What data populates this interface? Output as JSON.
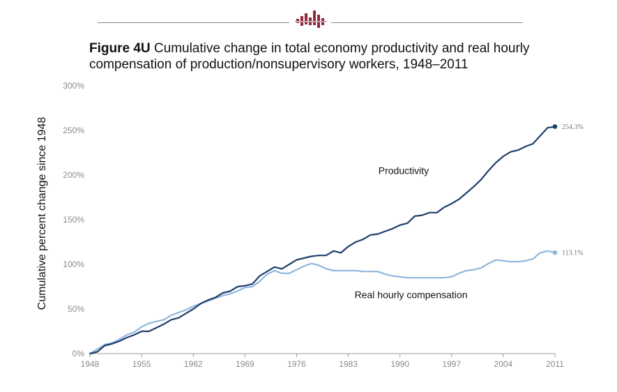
{
  "title": {
    "figure_label": "Figure 4U",
    "text": " Cumulative change in total economy productivity and real hourly compensation of production/nonsupervisory workers, 1948–2011"
  },
  "colors": {
    "productivity": "#1f3d6b",
    "compensation": "#8fb6dd",
    "logo": "#8c2a3c",
    "rule": "#8a8a8a"
  },
  "chart_data": {
    "type": "line",
    "title": "Cumulative change in total economy productivity and real hourly compensation of production/nonsupervisory workers, 1948–2011",
    "xlabel": "",
    "ylabel": "Cumulative percent change since 1948",
    "xlim": [
      1948,
      2011
    ],
    "ylim": [
      0,
      300
    ],
    "x_ticks": [
      "1948",
      "1955",
      "1962",
      "1969",
      "1976",
      "1983",
      "1990",
      "1997",
      "2004",
      "2011"
    ],
    "y_ticks": [
      "0%",
      "50%",
      "100%",
      "150%",
      "200%",
      "250%",
      "300%"
    ],
    "grid": false,
    "x": [
      1948,
      1949,
      1950,
      1951,
      1952,
      1953,
      1954,
      1955,
      1956,
      1957,
      1958,
      1959,
      1960,
      1961,
      1962,
      1963,
      1964,
      1965,
      1966,
      1967,
      1968,
      1969,
      1970,
      1971,
      1972,
      1973,
      1974,
      1975,
      1976,
      1977,
      1978,
      1979,
      1980,
      1981,
      1982,
      1983,
      1984,
      1985,
      1986,
      1987,
      1988,
      1989,
      1990,
      1991,
      1992,
      1993,
      1994,
      1995,
      1996,
      1997,
      1998,
      1999,
      2000,
      2001,
      2002,
      2003,
      2004,
      2005,
      2006,
      2007,
      2008,
      2009,
      2010,
      2011
    ],
    "series": [
      {
        "name": "Productivity",
        "values": [
          0,
          2,
          9,
          11,
          14,
          18,
          21,
          25,
          25,
          29,
          33,
          38,
          40,
          45,
          50,
          56,
          60,
          63,
          68,
          70,
          75,
          76,
          78,
          87,
          92,
          97,
          95,
          100,
          105,
          107,
          109,
          110,
          110,
          115,
          113,
          120,
          125,
          128,
          133,
          134,
          137,
          140,
          144,
          146,
          154,
          155,
          158,
          158,
          164,
          168,
          173,
          180,
          187,
          195,
          205,
          214,
          221,
          226,
          228,
          232,
          235,
          244,
          253,
          254.3
        ]
      },
      {
        "name": "Real hourly compensation",
        "values": [
          0,
          5,
          10,
          12,
          16,
          21,
          24,
          30,
          34,
          36,
          38,
          43,
          46,
          49,
          53,
          56,
          59,
          62,
          65,
          67,
          70,
          74,
          75,
          81,
          89,
          93,
          90,
          90,
          94,
          98,
          101,
          99,
          95,
          93,
          93,
          93,
          93,
          92,
          92,
          92,
          89,
          87,
          86,
          85,
          85,
          85,
          85,
          85,
          85,
          86,
          90,
          93,
          94,
          96,
          101,
          105,
          104,
          103,
          103,
          104,
          106,
          113,
          115,
          113.1
        ]
      }
    ],
    "annotations": [
      {
        "text": "Productivity",
        "x": 1990.5,
        "y": 201
      },
      {
        "text": "Real hourly compensation",
        "x": 1991.5,
        "y": 62
      },
      {
        "text": "254.3%",
        "x": 2011,
        "y": 254.3
      },
      {
        "text": "113.1%",
        "x": 2011,
        "y": 113.1
      }
    ]
  }
}
